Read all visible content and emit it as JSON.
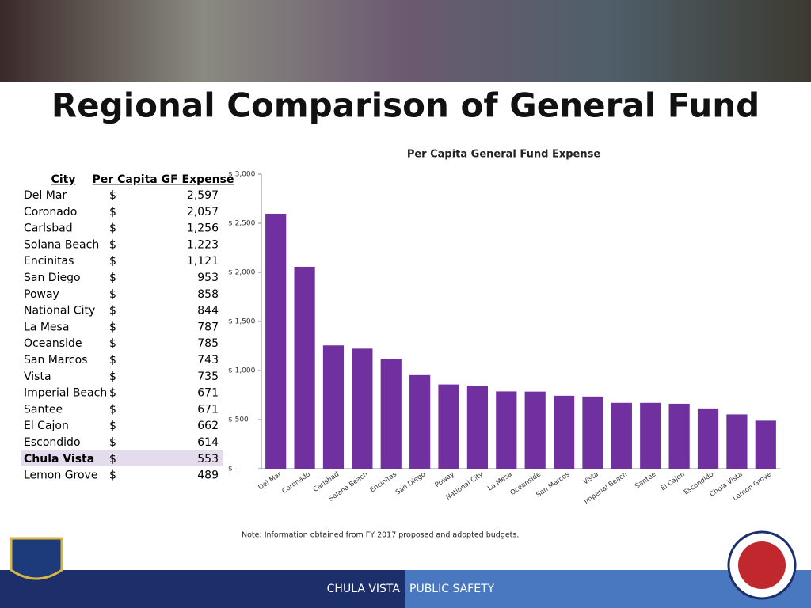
{
  "title": "Regional Comparison of General Fund",
  "table": {
    "header": [
      "City",
      "Per Capita GF Expense"
    ],
    "rows": [
      [
        "Del Mar",
        "$",
        "2,597"
      ],
      [
        "Coronado",
        "$",
        "2,057"
      ],
      [
        "Carlsbad",
        "$",
        "1,256"
      ],
      [
        "Solana Beach",
        "$",
        "1,223"
      ],
      [
        "Encinitas",
        "$",
        "1,121"
      ],
      [
        "San Diego",
        "$",
        "953"
      ],
      [
        "Poway",
        "$",
        "858"
      ],
      [
        "National City",
        "$",
        "844"
      ],
      [
        "La Mesa",
        "$",
        "787"
      ],
      [
        "Oceanside",
        "$",
        "785"
      ],
      [
        "San Marcos",
        "$",
        "743"
      ],
      [
        "Vista",
        "$",
        "735"
      ],
      [
        "Imperial Beach",
        "$",
        "671"
      ],
      [
        "Santee",
        "$",
        "671"
      ],
      [
        "El Cajon",
        "$",
        "662"
      ],
      [
        "Escondido",
        "$",
        "614"
      ],
      [
        "Chula Vista",
        "$",
        "553"
      ],
      [
        "Lemon Grove",
        "$",
        "489"
      ]
    ]
  },
  "chart_data": {
    "type": "bar",
    "title": "Per Capita General Fund Expense",
    "categories": [
      "Del Mar",
      "Coronado",
      "Carlsbad",
      "Solana Beach",
      "Encinitas",
      "San Diego",
      "Poway",
      "National City",
      "La Mesa",
      "Oceanside",
      "San Marcos",
      "Vista",
      "Imperial Beach",
      "Santee",
      "El Cajon",
      "Escondido",
      "Chula Vista",
      "Lemon Grove"
    ],
    "values": [
      2597,
      2057,
      1256,
      1223,
      1121,
      953,
      858,
      844,
      787,
      785,
      743,
      735,
      671,
      671,
      662,
      614,
      553,
      489
    ],
    "color": "#7030a0",
    "ylim": [
      0,
      3000
    ],
    "yticks": [
      {
        "value": 0,
        "label": "$ -"
      },
      {
        "value": 500,
        "label": "$ 500"
      },
      {
        "value": 1000,
        "label": "$ 1,000"
      },
      {
        "value": 1500,
        "label": "$ 1,500"
      },
      {
        "value": 2000,
        "label": "$ 2,000"
      },
      {
        "value": 2500,
        "label": "$ 2,500"
      },
      {
        "value": 3000,
        "label": "$ 3,000"
      }
    ],
    "grid": false
  },
  "note": "Note: Information obtained from FY 2017 proposed and adopted budgets.",
  "footer": [
    "CHULA VISTA",
    "PUBLIC SAFETY"
  ]
}
